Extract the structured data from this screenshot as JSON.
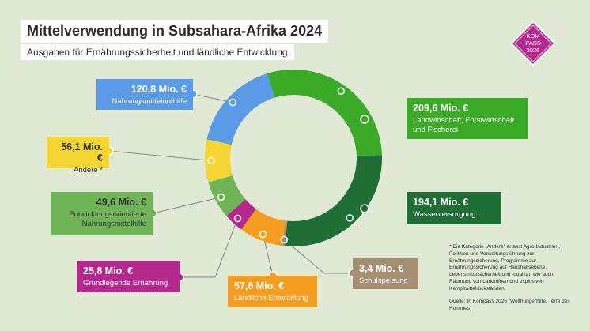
{
  "title": "Mittelverwendung in Subsahara-Afrika 2024",
  "subtitle": "Ausgaben für Ernährungssicherheit und ländliche Entwicklung",
  "logo": {
    "line1": "KOM",
    "line2": "PASS",
    "line3": "2026"
  },
  "footnote": "* Die Kategorie „Andere“ erfasst Agro-Industrien, Politiken und Verwaltungsführung zur Ernährungssicherung, Programme zur Ernährungssicherung auf Haushaltsebene, Lebensmittelsicherheit und -qualität, wie auch Räumung von Landminen und explosiven Kampfmittelrückständen.",
  "source": "Quelle: In Kompass 2026 (Welthungerhilfe, Terre des Hommes)",
  "chart_data": {
    "type": "pie",
    "title": "Mittelverwendung in Subsahara-Afrika 2024",
    "subtitle": "Ausgaben für Ernährungssicherheit und ländliche Entwicklung",
    "unit": "Mio. €",
    "slices": [
      {
        "name": "Landwirtschaft, Forstwirtschaft und Fischerei",
        "value": 209.6,
        "label": "209,6 Mio. €",
        "color": "#3aaa27"
      },
      {
        "name": "Wasserversorgung",
        "value": 194.1,
        "label": "194,1 Mio. €",
        "color": "#1f6e35"
      },
      {
        "name": "Schulspeisung",
        "value": 3.4,
        "label": "3,4 Mio. €",
        "color": "#a58e72"
      },
      {
        "name": "Ländliche Entwicklung",
        "value": 57.6,
        "label": "57,6 Mio. €",
        "color": "#f59d1f"
      },
      {
        "name": "Grundlegende Ernährung",
        "value": 25.8,
        "label": "25,8 Mio. €",
        "color": "#b5288d"
      },
      {
        "name": "Entwicklungsorientierte Nahrungsmittelhilfe",
        "value": 49.6,
        "label": "49,6 Mio. €",
        "color": "#6fb557"
      },
      {
        "name": "Andere *",
        "value": 56.1,
        "label": "56,1 Mio. €",
        "color": "#f4d531"
      },
      {
        "name": "Nahrungsmittelnothilfe",
        "value": 120.8,
        "label": "120,8 Mio. €",
        "color": "#5b9ae6"
      }
    ]
  }
}
